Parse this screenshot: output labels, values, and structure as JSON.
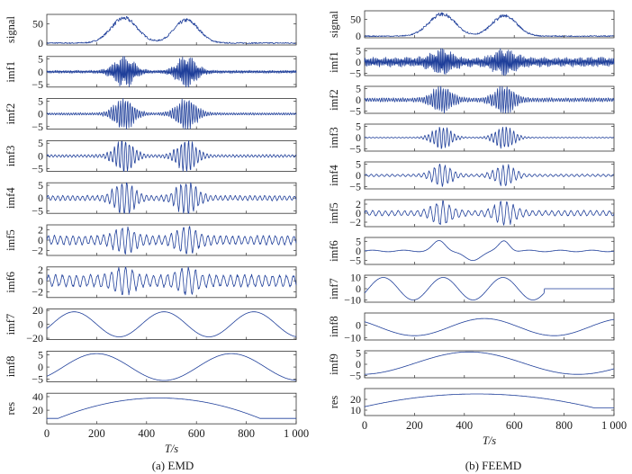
{
  "chart_data": [
    {
      "type": "line",
      "caption": "(a) EMD",
      "xlabel": "T/s",
      "x_ticks": [
        "0",
        "200",
        "400",
        "600",
        "800",
        "1 000"
      ],
      "xlim": [
        0,
        1000
      ],
      "panels": [
        {
          "name": "signal",
          "ylim": [
            -5,
            75
          ],
          "y_ticks": [
            0,
            50
          ],
          "kind": "bumps",
          "amp": 65,
          "noise": 5
        },
        {
          "name": "imf1",
          "ylim": [
            -6,
            6
          ],
          "y_ticks": [
            -5,
            0,
            5
          ],
          "kind": "burst",
          "amp": 5,
          "freq": 0.9,
          "base": 0.12
        },
        {
          "name": "imf2",
          "ylim": [
            -6,
            6
          ],
          "y_ticks": [
            -5,
            0,
            5
          ],
          "kind": "burst",
          "amp": 5,
          "freq": 0.45,
          "base": 0.1
        },
        {
          "name": "imf3",
          "ylim": [
            -6,
            6
          ],
          "y_ticks": [
            -5,
            0,
            5
          ],
          "kind": "burst",
          "amp": 5,
          "freq": 0.22,
          "base": 0.12
        },
        {
          "name": "imf4",
          "ylim": [
            -6,
            6
          ],
          "y_ticks": [
            -5,
            0,
            5
          ],
          "kind": "burst",
          "amp": 5.5,
          "freq": 0.12,
          "base": 0.2
        },
        {
          "name": "imf5",
          "ylim": [
            -3,
            3
          ],
          "y_ticks": [
            -2,
            0,
            2
          ],
          "kind": "burst",
          "amp": 2.2,
          "freq": 0.06,
          "base": 0.45
        },
        {
          "name": "imf6",
          "ylim": [
            -3,
            2.5
          ],
          "y_ticks": [
            -2,
            0,
            2
          ],
          "kind": "burst",
          "amp": 2,
          "freq": 0.03,
          "base": 0.6
        },
        {
          "name": "imf7",
          "ylim": [
            -22,
            22
          ],
          "y_ticks": [
            -20,
            0,
            20
          ],
          "kind": "sine",
          "amp": 18,
          "period": 360,
          "phase": 110,
          "shift": 0
        },
        {
          "name": "imf8",
          "ylim": [
            -6,
            6.5
          ],
          "y_ticks": [
            -5,
            0,
            5
          ],
          "kind": "sine",
          "amp": 5.5,
          "period": 540,
          "phase": 200,
          "shift": 0
        },
        {
          "name": "res",
          "ylim": [
            0,
            45
          ],
          "y_ticks": [
            20,
            40
          ],
          "kind": "arch",
          "low": 8,
          "high": 38,
          "peak": 450,
          "width": 600
        }
      ]
    },
    {
      "type": "line",
      "caption": "(b) FEEMD",
      "xlabel": "T/s",
      "x_ticks": [
        "0",
        "200",
        "400",
        "600",
        "800",
        "1 000"
      ],
      "xlim": [
        0,
        1000
      ],
      "panels": [
        {
          "name": "signal",
          "ylim": [
            -5,
            75
          ],
          "y_ticks": [
            0,
            50
          ],
          "kind": "bumps",
          "amp": 65,
          "noise": 5
        },
        {
          "name": "imf1",
          "ylim": [
            -6,
            6
          ],
          "y_ticks": [
            -5,
            0,
            5
          ],
          "kind": "burst",
          "amp": 5,
          "freq": 0.9,
          "base": 0.45
        },
        {
          "name": "imf2",
          "ylim": [
            -6,
            6
          ],
          "y_ticks": [
            -5,
            0,
            5
          ],
          "kind": "burst",
          "amp": 5,
          "freq": 0.45,
          "base": 0.2
        },
        {
          "name": "imf3",
          "ylim": [
            -6,
            6
          ],
          "y_ticks": [
            -5,
            0,
            5
          ],
          "kind": "burst",
          "amp": 4,
          "freq": 0.22,
          "base": 0.05
        },
        {
          "name": "imf4",
          "ylim": [
            -6,
            6
          ],
          "y_ticks": [
            -5,
            0,
            5
          ],
          "kind": "burst",
          "amp": 4,
          "freq": 0.1,
          "base": 0.15
        },
        {
          "name": "imf5",
          "ylim": [
            -3,
            3
          ],
          "y_ticks": [
            -2,
            0,
            2
          ],
          "kind": "burst",
          "amp": 2.2,
          "freq": 0.05,
          "base": 0.3
        },
        {
          "name": "imf6",
          "ylim": [
            -7,
            7
          ],
          "y_ticks": [
            -5,
            0,
            5
          ],
          "kind": "bumpwave",
          "amp": 6
        },
        {
          "name": "imf7",
          "ylim": [
            -12,
            12
          ],
          "y_ticks": [
            -10,
            0,
            10
          ],
          "kind": "sine",
          "amp": 10,
          "period": 240,
          "phase": 75,
          "shift": 0,
          "flat_after": 720
        },
        {
          "name": "imf8",
          "ylim": [
            -12,
            10
          ],
          "y_ticks": [
            -10,
            0
          ],
          "kind": "sine",
          "amp": 7,
          "period": 560,
          "phase": 480,
          "shift": -1.5
        },
        {
          "name": "imf9",
          "ylim": [
            -6,
            6
          ],
          "y_ticks": [
            -5,
            0,
            5
          ],
          "kind": "sine",
          "amp": 5,
          "period": 870,
          "phase": 420,
          "shift": 0.5
        },
        {
          "name": "res",
          "ylim": [
            5,
            30
          ],
          "y_ticks": [
            10,
            20
          ],
          "kind": "arch",
          "low": 12,
          "high": 25,
          "peak": 450,
          "width": 700
        }
      ]
    }
  ]
}
